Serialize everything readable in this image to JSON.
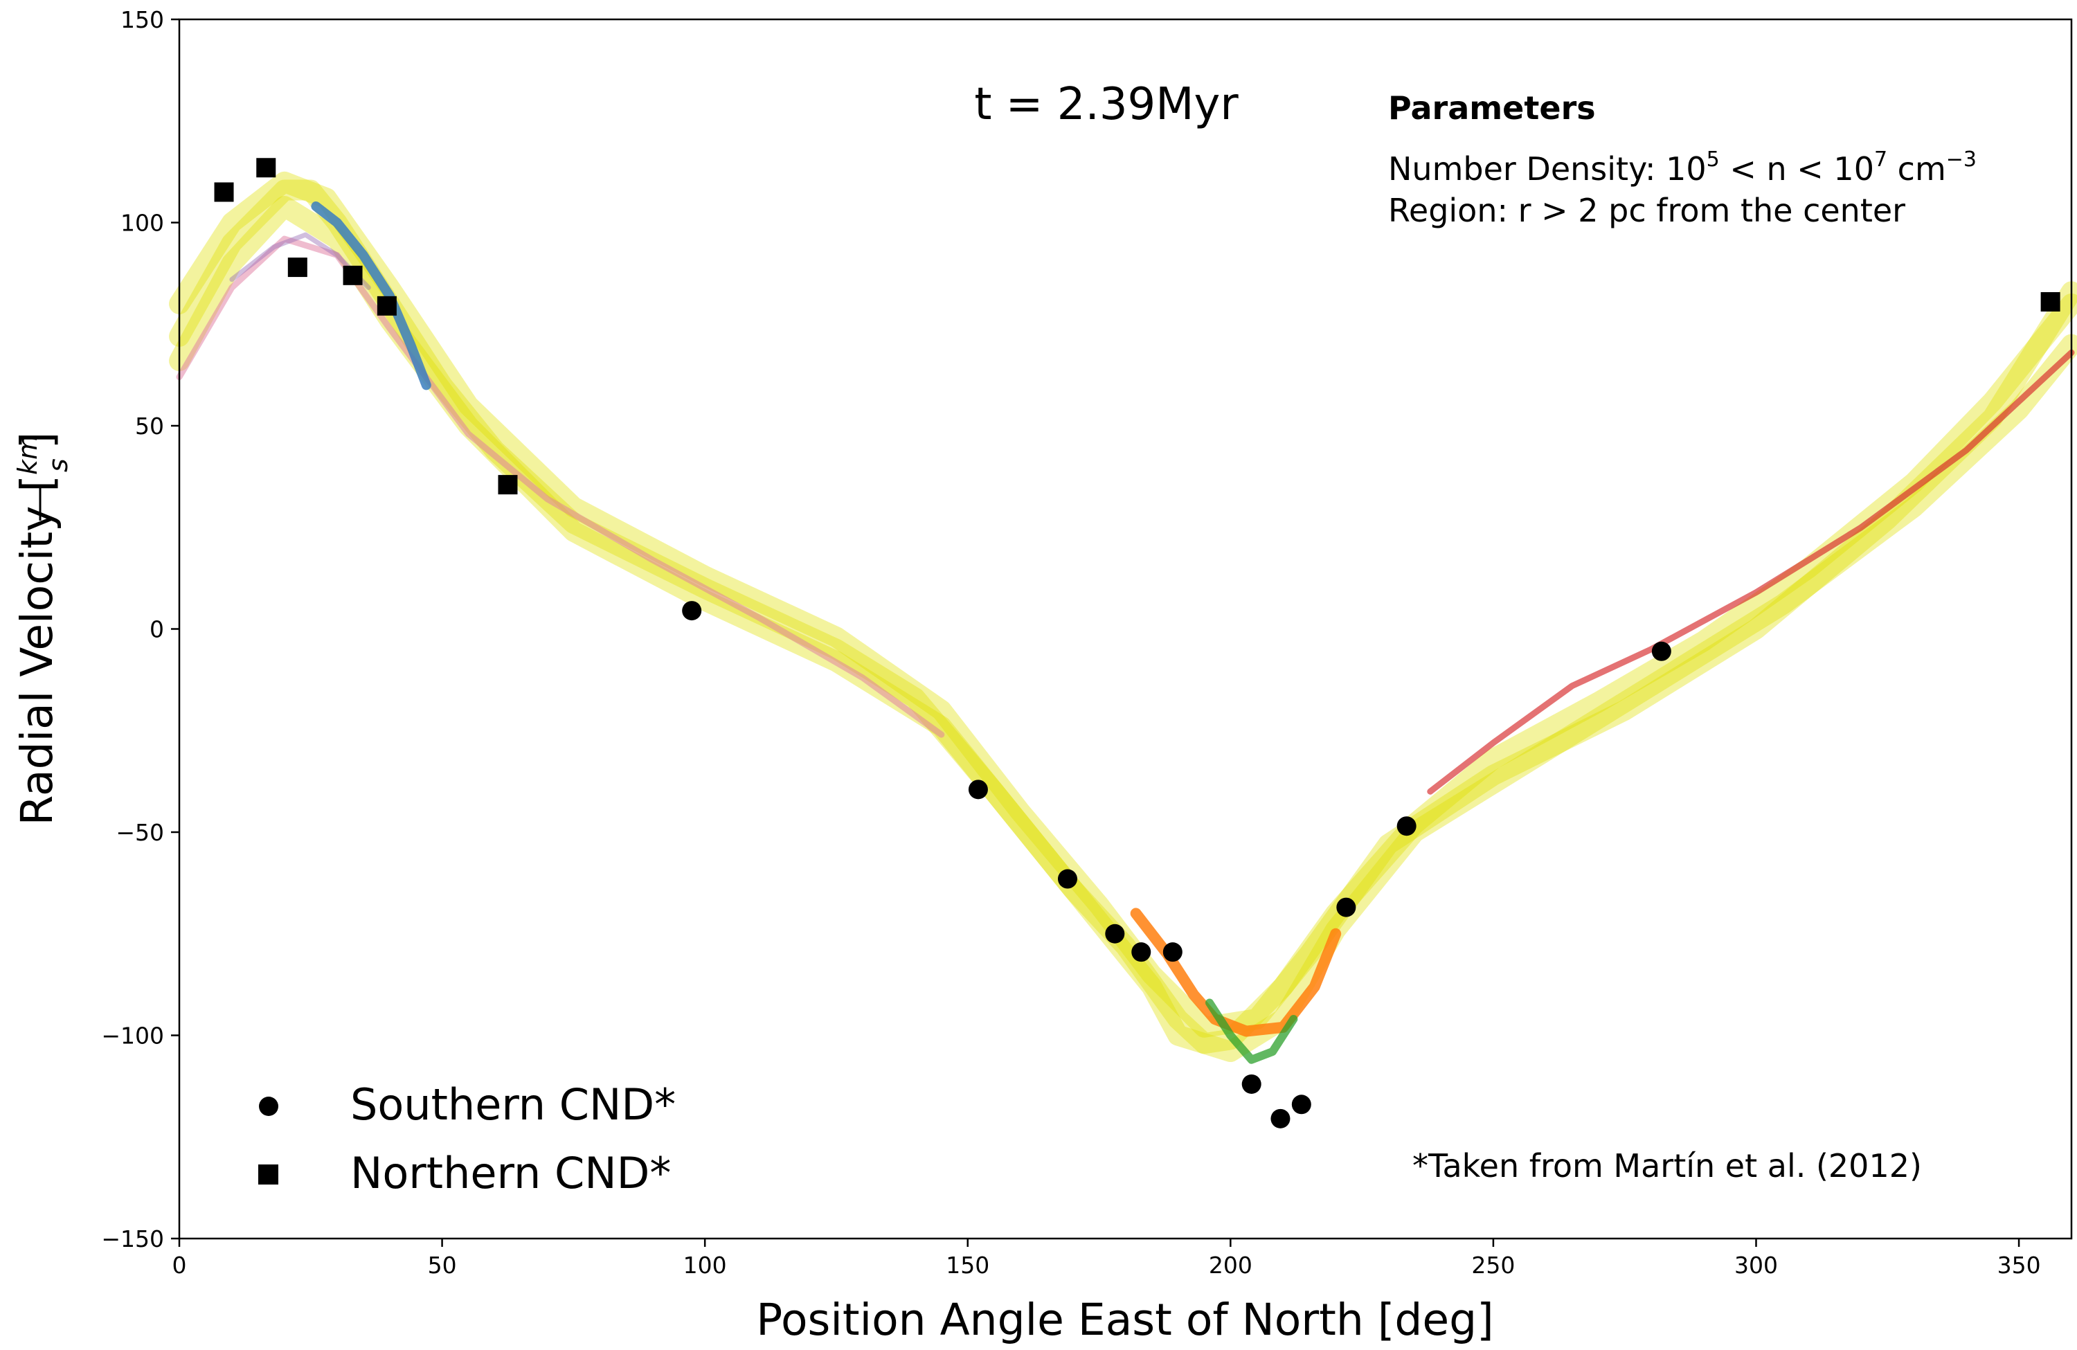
{
  "chart_data": {
    "type": "scatter",
    "annotation_time": "t = 2.39Myr",
    "parameters": {
      "title": "Parameters",
      "density_prefix": "Number Density: 10",
      "density_exp1": "5",
      "density_mid": " < n < 10",
      "density_exp2": "7",
      "density_unit": " cm",
      "density_exp3": "−3",
      "region": "Region: r > 2 pc from the center"
    },
    "citation": "*Taken from Martín et al. (2012)",
    "xlabel": "Position Angle East of North [deg]",
    "ylabel": {
      "text": "Radial Velocity [",
      "num": "km",
      "den": "s",
      "close": "]"
    },
    "xlim": [
      0,
      360
    ],
    "ylim": [
      -150,
      150
    ],
    "xticks": [
      0,
      50,
      100,
      150,
      200,
      250,
      300,
      350
    ],
    "yticks": [
      -150,
      -100,
      -50,
      0,
      50,
      100,
      150
    ],
    "ytick_labels": [
      "−150",
      "−100",
      "−50",
      "0",
      "50",
      "100",
      "150"
    ],
    "grid": false,
    "legend_position": "lower-left",
    "series": [
      {
        "name": "Southern CND*",
        "marker": "circle",
        "color": "#000000",
        "points": [
          [
            97.5,
            4.5
          ],
          [
            152,
            -39.5
          ],
          [
            169,
            -61.5
          ],
          [
            178,
            -75
          ],
          [
            183,
            -79.5
          ],
          [
            189,
            -79.5
          ],
          [
            204,
            -112
          ],
          [
            209.5,
            -120.5
          ],
          [
            213.5,
            -117
          ],
          [
            222,
            -68.5
          ],
          [
            233.5,
            -48.5
          ],
          [
            282,
            -5.5
          ]
        ]
      },
      {
        "name": "Northern CND*",
        "marker": "square",
        "color": "#000000",
        "points": [
          [
            8.5,
            107.5
          ],
          [
            16.5,
            113.5
          ],
          [
            22.5,
            89
          ],
          [
            33,
            87
          ],
          [
            39.5,
            79.5
          ],
          [
            62.5,
            35.5
          ],
          [
            356,
            80.5
          ]
        ]
      }
    ],
    "simulation_tracks": [
      {
        "color": "#e0e000",
        "points": [
          [
            0,
            72
          ],
          [
            10,
            95
          ],
          [
            20,
            108
          ],
          [
            25,
            108
          ],
          [
            30,
            100
          ],
          [
            40,
            80
          ],
          [
            50,
            60
          ],
          [
            60,
            44
          ],
          [
            75,
            26
          ],
          [
            100,
            10
          ],
          [
            125,
            -5
          ],
          [
            140,
            -17
          ],
          [
            155,
            -40
          ],
          [
            170,
            -64
          ],
          [
            180,
            -78
          ],
          [
            190,
            -96
          ],
          [
            195,
            -102
          ],
          [
            200,
            -101
          ],
          [
            210,
            -88
          ],
          [
            220,
            -70
          ],
          [
            235,
            -48
          ],
          [
            250,
            -32
          ],
          [
            270,
            -18
          ],
          [
            290,
            -3
          ],
          [
            310,
            15
          ],
          [
            330,
            36
          ],
          [
            345,
            56
          ],
          [
            360,
            80
          ]
        ]
      },
      {
        "color": "#e0e000",
        "points": [
          [
            0,
            80
          ],
          [
            10,
            100
          ],
          [
            20,
            110
          ],
          [
            28,
            106
          ],
          [
            40,
            84
          ],
          [
            55,
            55
          ],
          [
            75,
            30
          ],
          [
            100,
            13
          ],
          [
            125,
            -2
          ],
          [
            145,
            -20
          ],
          [
            160,
            -45
          ],
          [
            175,
            -68
          ],
          [
            185,
            -85
          ],
          [
            195,
            -98
          ],
          [
            205,
            -96
          ],
          [
            215,
            -80
          ],
          [
            230,
            -53
          ],
          [
            250,
            -36
          ],
          [
            275,
            -20
          ],
          [
            300,
            0
          ],
          [
            325,
            27
          ],
          [
            345,
            52
          ],
          [
            360,
            83
          ]
        ]
      },
      {
        "color": "#e0e000",
        "points": [
          [
            0,
            66
          ],
          [
            10,
            90
          ],
          [
            20,
            104
          ],
          [
            30,
            96
          ],
          [
            40,
            76
          ],
          [
            55,
            50
          ],
          [
            75,
            24
          ],
          [
            100,
            7
          ],
          [
            125,
            -8
          ],
          [
            145,
            -24
          ],
          [
            160,
            -48
          ],
          [
            175,
            -72
          ],
          [
            185,
            -88
          ],
          [
            190,
            -100
          ],
          [
            200,
            -104
          ],
          [
            210,
            -96
          ],
          [
            220,
            -74
          ],
          [
            235,
            -50
          ],
          [
            255,
            -34
          ],
          [
            280,
            -14
          ],
          [
            305,
            6
          ],
          [
            330,
            30
          ],
          [
            350,
            54
          ],
          [
            360,
            70
          ]
        ]
      },
      {
        "color": "#e07aa0",
        "points": [
          [
            0,
            62
          ],
          [
            10,
            84
          ],
          [
            20,
            96
          ],
          [
            30,
            92
          ],
          [
            40,
            74
          ],
          [
            55,
            48
          ],
          [
            70,
            32
          ],
          [
            90,
            17
          ],
          [
            110,
            3
          ],
          [
            130,
            -12
          ],
          [
            145,
            -26
          ]
        ]
      },
      {
        "color": "#9a6fb5",
        "points": [
          [
            10,
            86
          ],
          [
            18,
            94
          ],
          [
            24,
            97
          ],
          [
            30,
            92
          ],
          [
            36,
            84
          ]
        ]
      },
      {
        "color": "#3a7ebf",
        "points": [
          [
            26,
            104
          ],
          [
            30,
            100
          ],
          [
            35,
            92
          ],
          [
            40,
            82
          ],
          [
            44,
            70
          ],
          [
            47,
            60
          ]
        ]
      },
      {
        "color": "#d62728",
        "points": [
          [
            238,
            -40
          ],
          [
            250,
            -28
          ],
          [
            265,
            -14
          ],
          [
            280,
            -5
          ],
          [
            300,
            9
          ],
          [
            320,
            25
          ],
          [
            340,
            44
          ],
          [
            360,
            68
          ]
        ]
      },
      {
        "color": "#ff7f0e",
        "points": [
          [
            182,
            -70
          ],
          [
            188,
            -80
          ],
          [
            193,
            -90
          ],
          [
            197,
            -96
          ],
          [
            203,
            -99
          ],
          [
            210,
            -98
          ],
          [
            216,
            -88
          ],
          [
            220,
            -75
          ]
        ]
      },
      {
        "color": "#2ca02c",
        "points": [
          [
            196,
            -92
          ],
          [
            200,
            -100
          ],
          [
            204,
            -106
          ],
          [
            208,
            -104
          ],
          [
            212,
            -96
          ]
        ]
      }
    ]
  }
}
